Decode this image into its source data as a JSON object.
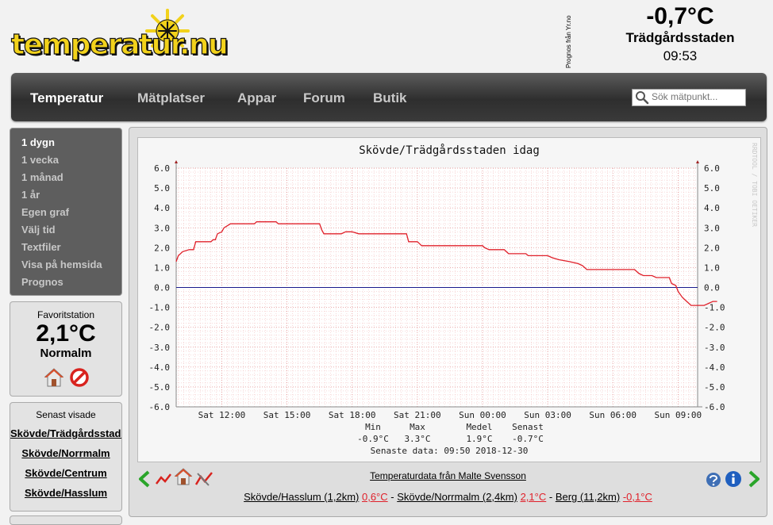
{
  "logo": {
    "text": "temperatur.nu"
  },
  "header": {
    "forecast_credit": "Prognos från Yr.no",
    "current_temp": "-0,7°C",
    "station": "Trädgårdsstaden",
    "time": "09:53"
  },
  "nav": {
    "items": [
      "Temperatur",
      "Mätplatser",
      "Appar",
      "Forum",
      "Butik"
    ],
    "active": "Temperatur",
    "search_placeholder": "Sök mätpunkt..."
  },
  "sidebar": {
    "menu": [
      "1 dygn",
      "1 vecka",
      "1 månad",
      "1 år",
      "Egen graf",
      "Välj tid",
      "Textfiler",
      "Visa på hemsida",
      "Prognos"
    ],
    "active": "1 dygn",
    "favorite": {
      "label": "Favoritstation",
      "temp": "2,1°C",
      "name": "Normalm"
    },
    "recent": {
      "label": "Senast visade",
      "links": [
        "Skövde/Trädgårdsstaden",
        "Skövde/Norrmalm",
        "Skövde/Centrum",
        "Skövde/Hasslum"
      ]
    }
  },
  "chart_data": {
    "type": "line",
    "title": "Skövde/Trädgårdsstaden idag",
    "side_label": "RRDTOOL / TOBI OETIKER",
    "ylim": [
      -6,
      6
    ],
    "y_ticks": [
      "6.0",
      "5.0",
      "4.0",
      "3.0",
      "2.0",
      "1.0",
      "0.0",
      "-1.0",
      "-2.0",
      "-3.0",
      "-4.0",
      "-5.0",
      "-6.0"
    ],
    "x_range_hours": [
      9.9,
      33.9
    ],
    "x_ticks": [
      {
        "label": "Sat 12:00",
        "h": 12
      },
      {
        "label": "Sat 15:00",
        "h": 15
      },
      {
        "label": "Sat 18:00",
        "h": 18
      },
      {
        "label": "Sat 21:00",
        "h": 21
      },
      {
        "label": "Sun 00:00",
        "h": 24
      },
      {
        "label": "Sun 03:00",
        "h": 27
      },
      {
        "label": "Sun 06:00",
        "h": 30
      },
      {
        "label": "Sun 09:00",
        "h": 33
      }
    ],
    "grid": true,
    "series": [
      {
        "color": "#e0202a",
        "points": [
          [
            9.9,
            1.3
          ],
          [
            10.0,
            1.6
          ],
          [
            10.2,
            1.8
          ],
          [
            10.5,
            1.9
          ],
          [
            10.7,
            1.9
          ],
          [
            10.8,
            2.3
          ],
          [
            11.5,
            2.3
          ],
          [
            11.6,
            2.4
          ],
          [
            11.7,
            2.4
          ],
          [
            11.8,
            2.7
          ],
          [
            12.0,
            2.8
          ],
          [
            12.1,
            3.0
          ],
          [
            12.4,
            3.2
          ],
          [
            13.5,
            3.2
          ],
          [
            13.6,
            3.3
          ],
          [
            14.5,
            3.3
          ],
          [
            14.6,
            3.2
          ],
          [
            16.5,
            3.2
          ],
          [
            16.6,
            2.9
          ],
          [
            16.7,
            2.7
          ],
          [
            17.5,
            2.7
          ],
          [
            17.7,
            2.8
          ],
          [
            18.0,
            2.8
          ],
          [
            18.3,
            2.7
          ],
          [
            20.5,
            2.7
          ],
          [
            20.6,
            2.3
          ],
          [
            21.0,
            2.3
          ],
          [
            21.1,
            2.2
          ],
          [
            21.2,
            2.1
          ],
          [
            24.0,
            2.1
          ],
          [
            24.1,
            2.0
          ],
          [
            24.3,
            1.9
          ],
          [
            25.0,
            1.9
          ],
          [
            25.2,
            1.7
          ],
          [
            26.0,
            1.7
          ],
          [
            26.1,
            1.6
          ],
          [
            27.0,
            1.6
          ],
          [
            27.2,
            1.5
          ],
          [
            27.5,
            1.4
          ],
          [
            28.0,
            1.3
          ],
          [
            28.4,
            1.2
          ],
          [
            28.6,
            1.1
          ],
          [
            28.8,
            0.9
          ],
          [
            31.0,
            0.9
          ],
          [
            31.2,
            0.7
          ],
          [
            31.4,
            0.6
          ],
          [
            31.8,
            0.6
          ],
          [
            32.0,
            0.5
          ],
          [
            32.6,
            0.5
          ],
          [
            32.7,
            0.2
          ],
          [
            32.9,
            0.1
          ],
          [
            33.0,
            -0.2
          ],
          [
            33.2,
            -0.5
          ],
          [
            33.4,
            -0.7
          ],
          [
            33.6,
            -0.9
          ],
          [
            34.2,
            -0.9
          ],
          [
            34.4,
            -0.8
          ],
          [
            34.6,
            -0.7
          ],
          [
            34.8,
            -0.7
          ]
        ]
      }
    ],
    "stats": {
      "headers": [
        "Min",
        "Max",
        "Medel",
        "Senast"
      ],
      "values": [
        "-0.9°C",
        "3.3°C",
        "1.9°C",
        "-0.7°C"
      ],
      "latest": "Senaste data: 09:50 2018-12-30"
    }
  },
  "footer": {
    "credit": "Temperaturdata från Malte Svensson",
    "nearby": [
      {
        "name": "Skövde/Hasslum (1,2km)",
        "temp": "0,6°C"
      },
      {
        "name": "Skövde/Norrmalm (2,4km)",
        "temp": "2,1°C"
      },
      {
        "name": "Berg (11,2km)",
        "temp": "-0,1°C"
      }
    ]
  }
}
